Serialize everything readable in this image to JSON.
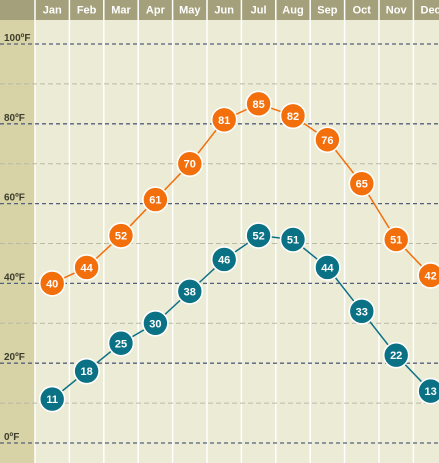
{
  "chart_data": {
    "type": "line",
    "categories": [
      "Jan",
      "Feb",
      "Mar",
      "Apr",
      "May",
      "Jun",
      "Jul",
      "Aug",
      "Sep",
      "Oct",
      "Nov",
      "Dec"
    ],
    "series": [
      {
        "values": [
          40,
          44,
          52,
          61,
          70,
          81,
          85,
          82,
          76,
          65,
          51,
          42
        ],
        "color": "#f26f0c"
      },
      {
        "values": [
          11,
          18,
          25,
          30,
          38,
          46,
          52,
          51,
          44,
          33,
          22,
          13
        ],
        "color": "#0b7184"
      }
    ],
    "y_ticks": [
      "0ºF",
      "20ºF",
      "40ºF",
      "60ºF",
      "80ºF",
      "100ºF"
    ],
    "y_tick_values": [
      0,
      20,
      40,
      60,
      80,
      100
    ],
    "ylim": [
      0,
      100
    ],
    "grid": true,
    "legend": "none",
    "colors": {
      "background": "#ecebd6",
      "header": "#a4a07c",
      "axis_band": "#d8d3a6",
      "major_grid": "#55607a",
      "minor_grid": "#b8b9a6"
    }
  }
}
